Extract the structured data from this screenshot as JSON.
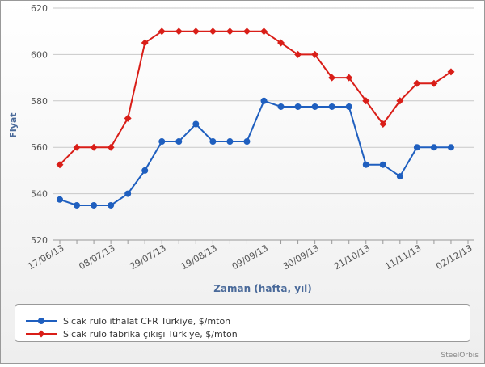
{
  "chart_data": {
    "type": "line",
    "x_label": "Zaman (hafta, yıl)",
    "y_label": "Fiyat",
    "credit": "SteelOrbis",
    "categories": [
      "17/06/13",
      null,
      null,
      "08/07/13",
      null,
      null,
      "29/07/13",
      null,
      null,
      "19/08/13",
      null,
      null,
      "09/09/13",
      null,
      null,
      "30/09/13",
      null,
      null,
      "21/10/13",
      null,
      null,
      "11/11/13",
      null,
      null,
      "02/12/13"
    ],
    "series": [
      {
        "name": "Sıcak rulo ithalat CFR Türkiye, $/mton",
        "color": "#1f5fbf",
        "marker": "circle",
        "values": [
          537.5,
          535,
          535,
          535,
          540,
          550,
          562.5,
          562.5,
          570,
          562.5,
          562.5,
          562.5,
          580,
          577.5,
          577.5,
          577.5,
          577.5,
          577.5,
          552.5,
          552.5,
          547.5,
          560,
          560,
          560,
          null
        ]
      },
      {
        "name": "Sıcak rulo fabrika çıkışı Türkiye, $/mton",
        "color": "#d91e18",
        "marker": "diamond",
        "values": [
          552.5,
          560,
          560,
          560,
          572.5,
          605,
          610,
          610,
          610,
          610,
          610,
          610,
          610,
          605,
          600,
          600,
          590,
          590,
          580,
          570,
          580,
          587.5,
          587.5,
          592.5,
          null
        ]
      }
    ],
    "ylim": [
      520,
      620
    ],
    "yticks": [
      520,
      540,
      560,
      580,
      600,
      620
    ],
    "grid": true,
    "legend": "bottom"
  }
}
